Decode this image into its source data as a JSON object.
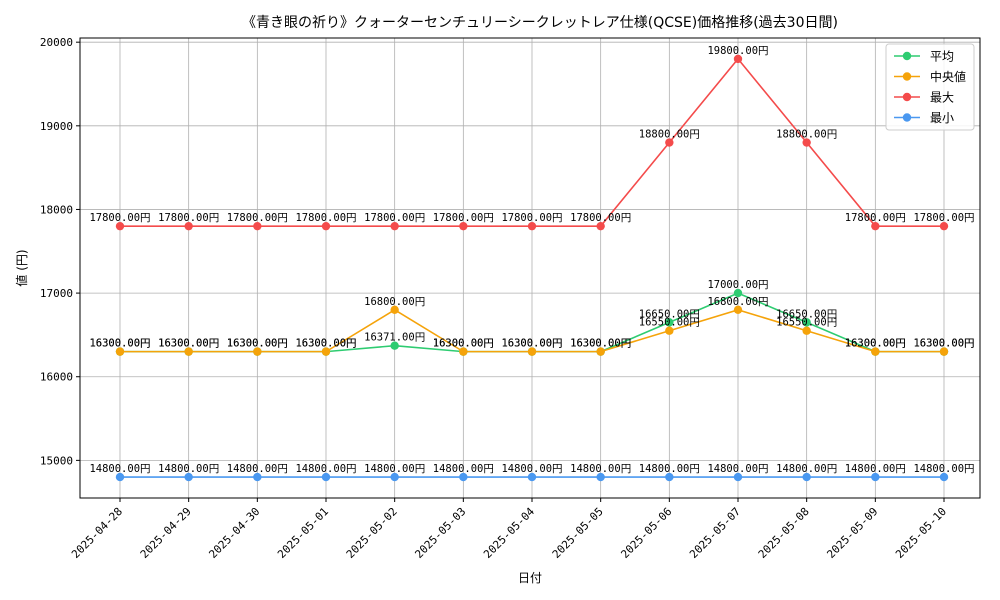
{
  "chart_data": {
    "type": "line",
    "title": "《青き眼の祈り》クォーターセンチュリーシークレットレア仕様(QCSE)価格推移(過去30日間)",
    "xlabel": "日付",
    "ylabel": "値 (円)",
    "categories": [
      "2025-04-28",
      "2025-04-29",
      "2025-04-30",
      "2025-05-01",
      "2025-05-02",
      "2025-05-03",
      "2025-05-04",
      "2025-05-05",
      "2025-05-06",
      "2025-05-07",
      "2025-05-08",
      "2025-05-09",
      "2025-05-10"
    ],
    "yticks": [
      15000,
      16000,
      17000,
      18000,
      19000,
      20000
    ],
    "ylim": [
      14550,
      20050
    ],
    "grid": true,
    "legend_position": "top-right",
    "series": [
      {
        "name": "平均",
        "color": "#2ecc71",
        "values": [
          16300,
          16300,
          16300,
          16300,
          16371,
          16300,
          16300,
          16300,
          16650,
          17000,
          16650,
          16300,
          16300
        ],
        "labels": [
          "16300.00円",
          "16300.00円",
          "16300.00円",
          "16300.00円",
          "16371.00円",
          "16300.00円",
          "16300.00円",
          "16300.00円",
          "16650.00円",
          "17000.00円",
          "16650.00円",
          "16300.00円",
          "16300.00円"
        ]
      },
      {
        "name": "中央値",
        "color": "#f5a30a",
        "values": [
          16300,
          16300,
          16300,
          16300,
          16800,
          16300,
          16300,
          16300,
          16550,
          16800,
          16550,
          16300,
          16300
        ],
        "labels": [
          "16300.00円",
          "16300.00円",
          "16300.00円",
          "16300.00円",
          "16800.00円",
          "16300.00円",
          "16300.00円",
          "16300.00円",
          "16550.00円",
          "16800.00円",
          "16550.00円",
          "16300.00円",
          "16300.00円"
        ]
      },
      {
        "name": "最大",
        "color": "#f44b4b",
        "values": [
          17800,
          17800,
          17800,
          17800,
          17800,
          17800,
          17800,
          17800,
          18800,
          19800,
          18800,
          17800,
          17800
        ],
        "labels": [
          "17800.00円",
          "17800.00円",
          "17800.00円",
          "17800.00円",
          "17800.00円",
          "17800.00円",
          "17800.00円",
          "17800.00円",
          "18800.00円",
          "19800.00円",
          "18800.00円",
          "17800.00円",
          "17800.00円"
        ]
      },
      {
        "name": "最小",
        "color": "#4a98f0",
        "values": [
          14800,
          14800,
          14800,
          14800,
          14800,
          14800,
          14800,
          14800,
          14800,
          14800,
          14800,
          14800,
          14800
        ],
        "labels": [
          "14800.00円",
          "14800.00円",
          "14800.00円",
          "14800.00円",
          "14800.00円",
          "14800.00円",
          "14800.00円",
          "14800.00円",
          "14800.00円",
          "14800.00円",
          "14800.00円",
          "14800.00円",
          "14800.00円"
        ]
      }
    ]
  }
}
